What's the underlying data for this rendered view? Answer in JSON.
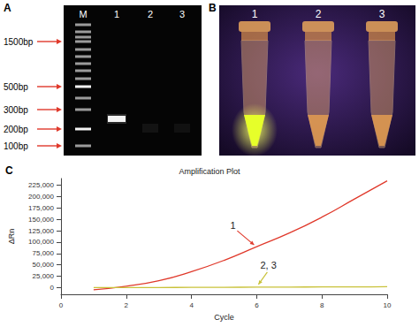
{
  "gel": {
    "panel": "A",
    "lanes": [
      "M",
      "1",
      "2",
      "3"
    ],
    "marker_labels": [
      "1500bp",
      "500bp",
      "300bp",
      "200bp",
      "100bp"
    ]
  },
  "tubes": {
    "panel": "B",
    "labels": [
      "1",
      "2",
      "3"
    ]
  },
  "chart_data": {
    "panel": "C",
    "type": "line",
    "title": "Amplification Plot",
    "x_label": "Cycle",
    "y_label": "ΔRn",
    "x": [
      1,
      2,
      3,
      4,
      5,
      6,
      7,
      8,
      9,
      10
    ],
    "xlim": [
      0,
      10
    ],
    "xticks": [
      0,
      2,
      4,
      6,
      8,
      10
    ],
    "ylim": [
      -15000,
      240000
    ],
    "yticks": [
      0,
      {
        "value": 25000,
        "label": "25,000"
      },
      {
        "value": 50000,
        "label": "50,000"
      },
      {
        "value": 75000,
        "label": "75,000"
      },
      {
        "value": 100000,
        "label": "100,000"
      },
      {
        "value": 125000,
        "label": "125,000"
      },
      {
        "value": 150000,
        "label": "150,000"
      },
      {
        "value": 175000,
        "label": "175,000"
      },
      {
        "value": 200000,
        "label": "200,000"
      },
      {
        "value": 225000,
        "label": "225,000"
      }
    ],
    "grid": false,
    "series": [
      {
        "name": "1",
        "color": "#e0392b",
        "values": [
          -5000,
          3000,
          15000,
          35000,
          60000,
          90000,
          120000,
          155000,
          195000,
          235000
        ]
      },
      {
        "name": "2, 3",
        "color": "#c9c23a",
        "values": [
          0,
          0,
          0,
          500,
          500,
          1000,
          1000,
          1500,
          1500,
          2000
        ]
      }
    ]
  }
}
